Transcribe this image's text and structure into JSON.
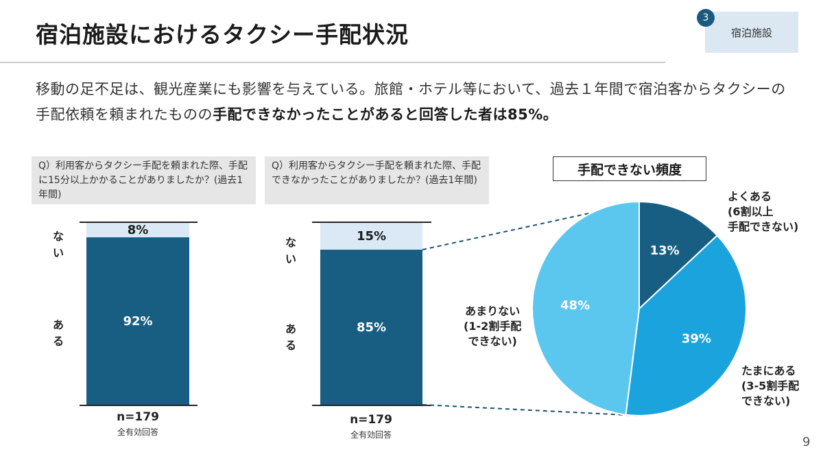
{
  "header": {
    "title": "宿泊施設におけるタクシー手配状況",
    "section_number": "3",
    "section_label": "宿泊施設"
  },
  "lead": {
    "text_normal": "移動の足不足は、観光産業にも影響を与えている。旅館・ホテル等において、過去１年間で宿泊客からタクシーの手配依頼を頼まれたものの",
    "text_bold": "手配できなかったことがあると回答した者は85%。"
  },
  "colors": {
    "bar_main": "#175e82",
    "bar_top": "#dbe8f5",
    "pie_dark": "#175e82",
    "pie_mid": "#1aa3dd",
    "pie_light": "#5bc7ee"
  },
  "chart_data": [
    {
      "type": "bar",
      "question": "Q）利用客からタクシー手配を頼まれた際、手配に15分以上かかることがありましたか？(過去1年間)",
      "stacked": true,
      "series": [
        {
          "name": "ない",
          "value": 8,
          "label": "8%"
        },
        {
          "name": "ある",
          "value": 92,
          "label": "92%"
        }
      ],
      "n_label": "n=179",
      "n_sub": "全有効回答"
    },
    {
      "type": "bar",
      "question": "Q）利用客からタクシー手配を頼まれた際、手配できなかったことがありましたか？(過去1年間)",
      "stacked": true,
      "series": [
        {
          "name": "ない",
          "value": 15,
          "label": "15%"
        },
        {
          "name": "ある",
          "value": 85,
          "label": "85%"
        }
      ],
      "n_label": "n=179",
      "n_sub": "全有効回答"
    },
    {
      "type": "pie",
      "title": "手配できない頻度",
      "slices": [
        {
          "name": "よくある\n(6割以上\n手配できない)",
          "value": 13,
          "label": "13%",
          "color": "#175e82"
        },
        {
          "name": "たまにある\n(3-5割手配\nできない)",
          "value": 39,
          "label": "39%",
          "color": "#1aa3dd"
        },
        {
          "name": "あまりない\n(1-2割手配\nできない)",
          "value": 48,
          "label": "48%",
          "color": "#5bc7ee"
        }
      ]
    }
  ],
  "page_number": "9"
}
